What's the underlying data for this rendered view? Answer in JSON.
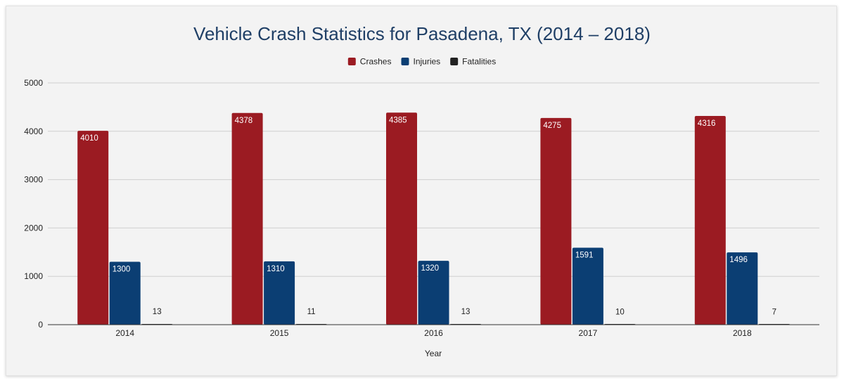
{
  "chart_data": {
    "type": "bar",
    "title": "Vehicle Crash Statistics for Pasadena, TX (2014 – 2018)",
    "xlabel": "Year",
    "ylabel": "",
    "categories": [
      "2014",
      "2015",
      "2016",
      "2017",
      "2018"
    ],
    "series": [
      {
        "name": "Crashes",
        "color": "#9b1b22",
        "values": [
          4010,
          4378,
          4385,
          4275,
          4316
        ]
      },
      {
        "name": "Injuries",
        "color": "#0b3e73",
        "values": [
          1300,
          1310,
          1320,
          1591,
          1496
        ]
      },
      {
        "name": "Fatalities",
        "color": "#222222",
        "values": [
          13,
          11,
          13,
          10,
          7
        ]
      }
    ],
    "ylim": [
      0,
      5000
    ],
    "yticks": [
      "0",
      "1000",
      "2000",
      "3000",
      "4000",
      "5000"
    ],
    "grid": true,
    "legend_position": "top-center",
    "data_labels": true
  }
}
